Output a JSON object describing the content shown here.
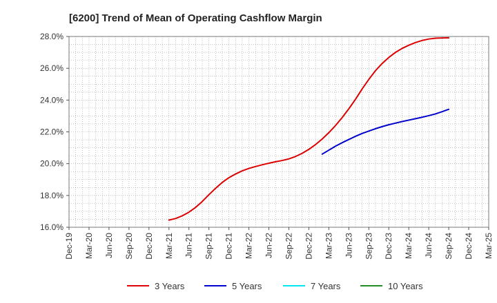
{
  "chart_data": {
    "type": "line",
    "title": "[6200]  Trend of Mean of Operating Cashflow Margin",
    "xlabel": "",
    "ylabel": "",
    "ylim": [
      16.0,
      28.0
    ],
    "y_ticks": [
      "16.0%",
      "18.0%",
      "20.0%",
      "22.0%",
      "24.0%",
      "26.0%",
      "28.0%"
    ],
    "y_tick_values": [
      16,
      18,
      20,
      22,
      24,
      26,
      28
    ],
    "x_ticks": [
      "Dec-19",
      "Mar-20",
      "Jun-20",
      "Sep-20",
      "Dec-20",
      "Mar-21",
      "Jun-21",
      "Sep-21",
      "Dec-21",
      "Mar-22",
      "Jun-22",
      "Sep-22",
      "Dec-22",
      "Mar-23",
      "Jun-23",
      "Sep-23",
      "Dec-23",
      "Mar-24",
      "Jun-24",
      "Sep-24",
      "Dec-24",
      "Mar-25"
    ],
    "grid": true,
    "legend_position": "bottom",
    "series": [
      {
        "name": "3 Years",
        "color": "#dd0000",
        "x": [
          "Mar-21",
          "Apr-21",
          "May-21",
          "Jun-21",
          "Jul-21",
          "Aug-21",
          "Sep-21",
          "Oct-21",
          "Nov-21",
          "Dec-21",
          "Jan-22",
          "Feb-22",
          "Mar-22",
          "Apr-22",
          "May-22",
          "Jun-22",
          "Jul-22",
          "Aug-22",
          "Sep-22",
          "Oct-22",
          "Nov-22",
          "Dec-22",
          "Jan-23",
          "Feb-23",
          "Mar-23",
          "Apr-23",
          "May-23",
          "Jun-23",
          "Jul-23",
          "Aug-23",
          "Sep-23",
          "Oct-23",
          "Nov-23",
          "Dec-23",
          "Jan-24",
          "Feb-24",
          "Mar-24",
          "Apr-24",
          "May-24",
          "Jun-24",
          "Jul-24",
          "Aug-24",
          "Sep-24"
        ],
        "values": [
          16.45,
          16.55,
          16.72,
          16.95,
          17.25,
          17.62,
          18.05,
          18.45,
          18.82,
          19.12,
          19.35,
          19.55,
          19.7,
          19.82,
          19.93,
          20.03,
          20.12,
          20.2,
          20.3,
          20.45,
          20.65,
          20.9,
          21.2,
          21.55,
          21.95,
          22.4,
          22.9,
          23.45,
          24.05,
          24.7,
          25.3,
          25.85,
          26.3,
          26.68,
          27.0,
          27.25,
          27.45,
          27.62,
          27.75,
          27.84,
          27.89,
          27.91,
          27.92
        ]
      },
      {
        "name": "5 Years",
        "color": "#0000cc",
        "x": [
          "Feb-23",
          "Mar-23",
          "Apr-23",
          "May-23",
          "Jun-23",
          "Jul-23",
          "Aug-23",
          "Sep-23",
          "Oct-23",
          "Nov-23",
          "Dec-23",
          "Jan-24",
          "Feb-24",
          "Mar-24",
          "Apr-24",
          "May-24",
          "Jun-24",
          "Jul-24",
          "Aug-24",
          "Sep-24"
        ],
        "values": [
          20.6,
          20.85,
          21.1,
          21.32,
          21.52,
          21.72,
          21.9,
          22.05,
          22.2,
          22.33,
          22.45,
          22.55,
          22.65,
          22.74,
          22.83,
          22.92,
          23.02,
          23.13,
          23.27,
          23.42
        ]
      },
      {
        "name": "7 Years",
        "color": "#00e5ee",
        "x": [],
        "values": []
      },
      {
        "name": "10 Years",
        "color": "#228b22",
        "x": [],
        "values": []
      }
    ]
  }
}
